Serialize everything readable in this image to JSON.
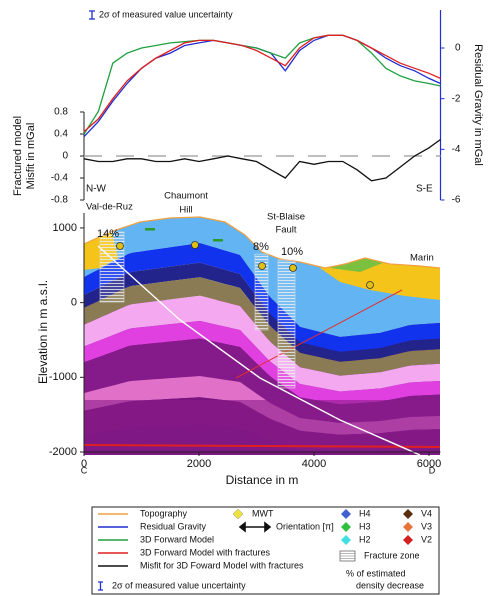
{
  "chart_data": [
    {
      "type": "line",
      "note": "2σ of measured value uncertainty",
      "ylabel": [
        "Fractured model",
        "Misfit in mGal"
      ],
      "y2label": "Residual Gravity in mGal",
      "annotations": [
        "N-W",
        "S-E"
      ],
      "x": [
        0,
        250,
        500,
        750,
        1000,
        1250,
        1500,
        1750,
        2000,
        2250,
        2500,
        2750,
        3000,
        3250,
        3500,
        3750,
        4000,
        4250,
        4500,
        4750,
        5000,
        5250,
        5500,
        5750,
        6000,
        6200
      ],
      "xlim": [
        0,
        6200
      ],
      "ylim": [
        -0.8,
        0.8
      ],
      "yticks": [
        -0.8,
        -0.4,
        0,
        0.4,
        0.8
      ],
      "y2lim": [
        -6,
        1.5
      ],
      "y2ticks": [
        -6,
        -4,
        -2,
        0
      ],
      "series": [
        {
          "name": "Residual Gravity",
          "color": "#1f2fd0",
          "axis": "y2",
          "values": [
            -3.5,
            -2.9,
            -2.1,
            -1.4,
            -0.8,
            -0.4,
            -0.2,
            0.1,
            0.2,
            0.3,
            0.2,
            0.1,
            0.0,
            -0.2,
            -0.9,
            -0.1,
            0.3,
            0.5,
            0.5,
            0.3,
            0.0,
            -0.4,
            -0.7,
            -0.9,
            -1.2,
            -1.4
          ]
        },
        {
          "name": "3D Forward Model",
          "color": "#20a040",
          "axis": "y2",
          "values": [
            -3.4,
            -2.5,
            -0.6,
            -0.2,
            0.0,
            0.1,
            0.2,
            0.25,
            0.3,
            0.3,
            0.2,
            0.1,
            0.0,
            -0.2,
            -0.4,
            0.2,
            0.4,
            0.5,
            0.5,
            0.3,
            -0.2,
            -0.8,
            -1.1,
            -1.3,
            -1.4,
            -1.5
          ]
        },
        {
          "name": "3D Forward Model with fractures",
          "color": "#e02020",
          "axis": "y2",
          "values": [
            -3.3,
            -2.8,
            -2.0,
            -1.3,
            -0.8,
            -0.4,
            -0.1,
            0.2,
            0.3,
            0.3,
            0.2,
            0.1,
            -0.1,
            -0.4,
            -0.7,
            0.0,
            0.4,
            0.5,
            0.5,
            0.3,
            0.0,
            -0.3,
            -0.6,
            -0.8,
            -1.0,
            -1.2
          ]
        },
        {
          "name": "Misfit for 3D Foward Model with fractures",
          "color": "#111111",
          "axis": "y",
          "values": [
            -0.05,
            -0.1,
            -0.1,
            -0.05,
            -0.05,
            -0.1,
            -0.1,
            -0.05,
            -0.1,
            -0.05,
            0.0,
            -0.05,
            -0.1,
            -0.25,
            -0.4,
            -0.1,
            -0.15,
            -0.1,
            -0.1,
            -0.25,
            -0.45,
            -0.4,
            -0.2,
            0.0,
            0.15,
            0.3
          ]
        }
      ]
    },
    {
      "type": "cross-section",
      "xlabel": "Distance in m",
      "ylabel": "Elevation in m a.s.l.",
      "xlim": [
        0,
        6200
      ],
      "xticks": [
        0,
        2000,
        4000,
        6000
      ],
      "ylim": [
        -2000,
        1200
      ],
      "yticks": [
        -2000,
        -1000,
        0,
        1000
      ],
      "end_labels": [
        "C",
        "D"
      ],
      "labels": [
        "Val-de-Ruz",
        "Chaumont",
        "Hill",
        "St-Blaise",
        "Fault",
        "Marin"
      ],
      "fracture_zones": {
        "values": [
          14,
          8,
          10
        ],
        "value_labels": [
          "14%",
          "8%",
          "10%"
        ]
      }
    }
  ],
  "legend": {
    "topography": "Topography",
    "topography_color": "#f0a040",
    "uncertainty": "2σ of measured value uncertainty",
    "mwt": "MWT",
    "orientation": "Orientation [π]",
    "classes": [
      {
        "label": "H4",
        "color": "#4060d0"
      },
      {
        "label": "H3",
        "color": "#30c040"
      },
      {
        "label": "H2",
        "color": "#40e0e0"
      },
      {
        "label": "V4",
        "color": "#5a2d0c"
      },
      {
        "label": "V3",
        "color": "#e8743b"
      },
      {
        "label": "V2",
        "color": "#d62020"
      }
    ],
    "fracture_zone": "Fracture zone",
    "density": [
      "% of estimated",
      "density decrease"
    ]
  }
}
